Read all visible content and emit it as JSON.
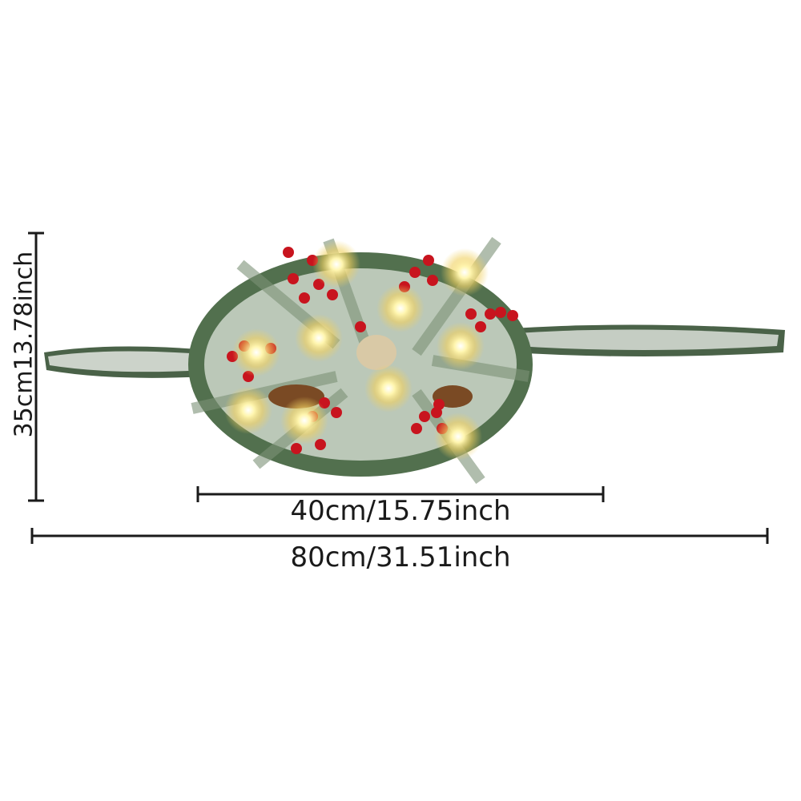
{
  "product": "Christmas garland centerpiece with lights",
  "dimensions": {
    "height_label": "35cm13.78inch",
    "center_width_label": "40cm/15.75inch",
    "total_width_label": "80cm/31.51inch"
  },
  "colors": {
    "line": "#1a1a1a",
    "berry": "#c8141e",
    "light": "#fff6b0",
    "foliage": "#3e5a40",
    "snow": "#e8ece6",
    "pinecone": "#7a4a24"
  }
}
